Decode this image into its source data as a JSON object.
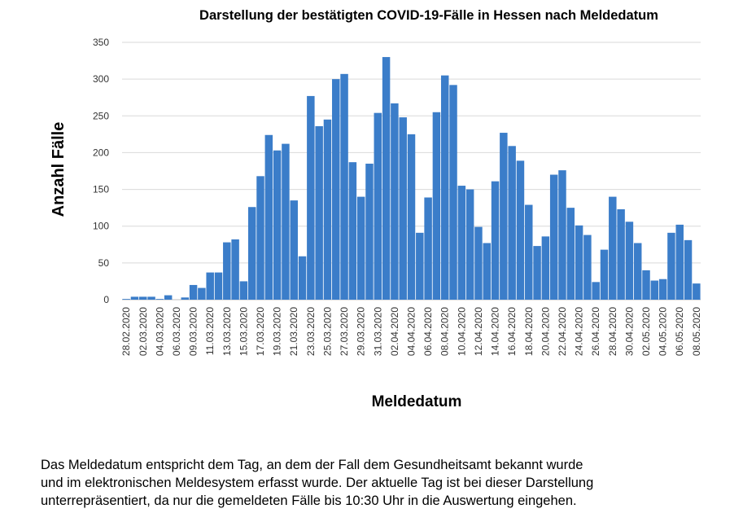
{
  "chart_data": {
    "type": "bar",
    "title": "Darstellung der bestätigten COVID-19-Fälle in Hessen nach Meldedatum",
    "y_label": "Anzahl Fälle",
    "x_label": "Meldedatum",
    "categories": [
      "28.02.2020",
      null,
      "02.03.2020",
      null,
      "04.03.2020",
      null,
      "06.03.2020",
      null,
      "09.03.2020",
      null,
      "11.03.2020",
      null,
      "13.03.2020",
      null,
      "15.03.2020",
      null,
      "17.03.2020",
      null,
      "19.03.2020",
      null,
      "21.03.2020",
      null,
      "23.03.2020",
      null,
      "25.03.2020",
      null,
      "27.03.2020",
      null,
      "29.03.2020",
      null,
      "31.03.2020",
      null,
      "02.04.2020",
      null,
      "04.04.2020",
      null,
      "06.04.2020",
      null,
      "08.04.2020",
      null,
      "10.04.2020",
      null,
      "12.04.2020",
      null,
      "14.04.2020",
      null,
      "16.04.2020",
      null,
      "18.04.2020",
      null,
      "20.04.2020",
      null,
      "22.04.2020",
      null,
      "24.04.2020",
      null,
      "26.04.2020",
      null,
      "28.04.2020",
      null,
      "30.04.2020",
      null,
      "02.05.2020",
      null,
      "04.05.2020",
      null,
      "06.05.2020",
      null,
      "08.05.2020"
    ],
    "values": [
      1,
      4,
      4,
      4,
      1,
      6,
      0,
      3,
      20,
      16,
      37,
      37,
      78,
      82,
      25,
      126,
      168,
      224,
      203,
      212,
      135,
      59,
      277,
      236,
      245,
      300,
      307,
      187,
      140,
      185,
      254,
      330,
      267,
      248,
      225,
      91,
      139,
      255,
      305,
      292,
      155,
      150,
      99,
      77,
      161,
      227,
      209,
      189,
      129,
      73,
      86,
      170,
      176,
      125,
      101,
      88,
      24,
      68,
      140,
      123,
      106,
      77,
      40,
      26,
      28,
      91,
      102,
      81,
      22
    ],
    "color": "#3b7dc9",
    "ylim": [
      0,
      350
    ],
    "yticks": [
      0,
      50,
      100,
      150,
      200,
      250,
      300,
      350
    ],
    "grid": true
  },
  "note": [
    "Das Meldedatum entspricht dem Tag, an dem der Fall dem Gesundheitsamt bekannt wurde",
    "und im elektronischen Meldesystem erfasst wurde. Der aktuelle Tag ist bei dieser Darstellung",
    "unterrepräsentiert, da nur die gemeldeten Fälle bis 10:30 Uhr in die Auswertung eingehen."
  ]
}
